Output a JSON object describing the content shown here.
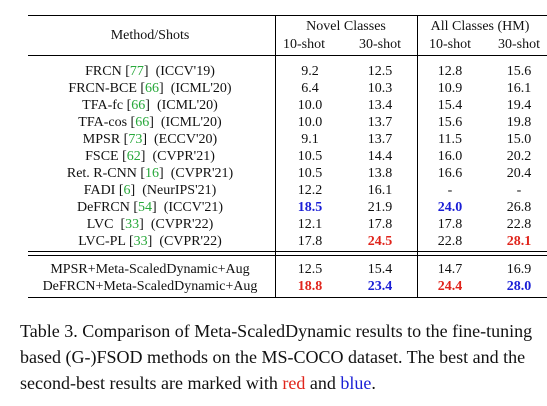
{
  "header": {
    "method_shots": "Method/Shots",
    "novel_classes": "Novel Classes",
    "all_classes": "All Classes (HM)",
    "shots": [
      "10-shot",
      "30-shot",
      "10-shot",
      "30-shot"
    ]
  },
  "rows": [
    {
      "name": "FRCN",
      "cite": "77",
      "venue": "(ICCV'19)",
      "v": [
        "9.2",
        "12.5",
        "12.8",
        "15.6"
      ]
    },
    {
      "name": "FRCN-BCE",
      "cite": "66",
      "venue": "(ICML'20)",
      "v": [
        "6.4",
        "10.3",
        "10.9",
        "16.1"
      ]
    },
    {
      "name": "TFA-fc",
      "cite": "66",
      "venue": "(ICML'20)",
      "v": [
        "10.0",
        "13.4",
        "15.4",
        "19.4"
      ]
    },
    {
      "name": "TFA-cos",
      "cite": "66",
      "venue": "(ICML'20)",
      "v": [
        "10.0",
        "13.7",
        "15.6",
        "19.8"
      ]
    },
    {
      "name": "MPSR",
      "cite": "73",
      "venue": "(ECCV'20)",
      "v": [
        "9.1",
        "13.7",
        "11.5",
        "15.0"
      ]
    },
    {
      "name": "FSCE",
      "cite": "62",
      "venue": "(CVPR'21)",
      "v": [
        "10.5",
        "14.4",
        "16.0",
        "20.2"
      ]
    },
    {
      "name": "Ret. R-CNN",
      "cite": "16",
      "venue": "(CVPR'21)",
      "v": [
        "10.5",
        "13.8",
        "16.6",
        "20.4"
      ]
    },
    {
      "name": "FADI",
      "cite": "6",
      "venue": "(NeurIPS'21)",
      "v": [
        "12.2",
        "16.1",
        "-",
        "-"
      ]
    },
    {
      "name": "DeFRCN",
      "cite": "54",
      "venue": "(ICCV'21)",
      "v": [
        "18.5",
        "21.9",
        "24.0",
        "26.8"
      ]
    },
    {
      "name": "LVC",
      "cite": "33",
      "venue": "(CVPR'22)",
      "v": [
        "12.1",
        "17.8",
        "17.8",
        "22.8"
      ]
    },
    {
      "name": "LVC-PL",
      "cite": "33",
      "venue": "(CVPR'22)",
      "v": [
        "17.8",
        "24.5",
        "22.8",
        "28.1"
      ]
    }
  ],
  "ours": [
    {
      "name": "MPSR+Meta-ScaledDynamic+Aug",
      "v": [
        "12.5",
        "15.4",
        "14.7",
        "16.9"
      ]
    },
    {
      "name": "DeFRCN+Meta-ScaledDynamic+Aug",
      "v": [
        "18.8",
        "23.4",
        "24.4",
        "28.0"
      ]
    }
  ],
  "highlight_colors": {
    "best": "#e0241b",
    "second": "#1a1fd6",
    "citation": "#27a83a"
  },
  "caption": {
    "part1": "Table 3. Comparison of Meta-ScaledDynamic results to the fine-tuning based (G-)FSOD methods on the MS-COCO dataset. The best and the second-best results are marked with ",
    "red_word": "red",
    "and_word": " and ",
    "blue_word": "blue",
    "end": "."
  }
}
